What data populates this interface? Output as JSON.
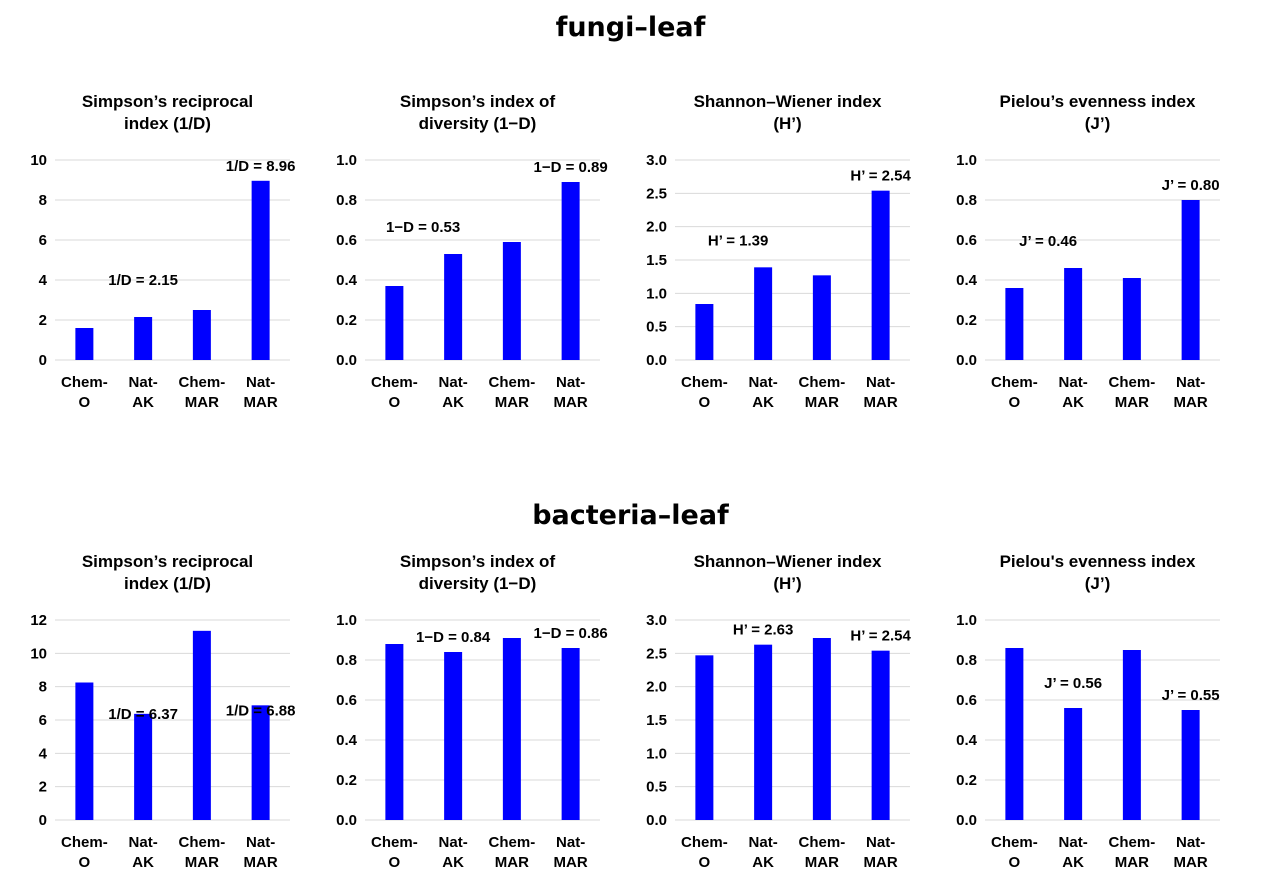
{
  "sections": [
    {
      "title": "fungi–leaf"
    },
    {
      "title": "bacteria–leaf"
    }
  ],
  "chart_data": [
    {
      "type": "bar",
      "title": "Simpson’s reciprocal index (1/D)",
      "title_lines": [
        "Simpson’s reciprocal",
        "index (1/D)"
      ],
      "categories": [
        "Chem-O",
        "Nat-AK",
        "Chem-MAR",
        "Nat-MAR"
      ],
      "category_lines": [
        [
          "Chem-",
          "O"
        ],
        [
          "Nat-",
          "AK"
        ],
        [
          "Chem-",
          "MAR"
        ],
        [
          "Nat-",
          "MAR"
        ]
      ],
      "values": [
        1.6,
        2.15,
        2.5,
        8.96
      ],
      "ylim": [
        0,
        10
      ],
      "yticks": [
        "0",
        "2",
        "4",
        "6",
        "8",
        "10"
      ],
      "data_labels": [
        "",
        "1/D = 2.15",
        "",
        "1/D = 8.96"
      ],
      "color": "#0000ff",
      "grid": true
    },
    {
      "type": "bar",
      "title": "Simpson’s index of diversity (1−D)",
      "title_lines": [
        "Simpson’s index of",
        "diversity (1−D)"
      ],
      "categories": [
        "Chem-O",
        "Nat-AK",
        "Chem-MAR",
        "Nat-MAR"
      ],
      "category_lines": [
        [
          "Chem-",
          "O"
        ],
        [
          "Nat-",
          "AK"
        ],
        [
          "Chem-",
          "MAR"
        ],
        [
          "Nat-",
          "MAR"
        ]
      ],
      "values": [
        0.37,
        0.53,
        0.59,
        0.89
      ],
      "ylim": [
        0,
        1
      ],
      "yticks": [
        "0.0",
        "0.2",
        "0.4",
        "0.6",
        "0.8",
        "1.0"
      ],
      "data_labels": [
        "",
        "1−D = 0.53",
        "",
        "1−D = 0.89"
      ],
      "color": "#0000ff",
      "grid": true
    },
    {
      "type": "bar",
      "title": "Shannon–Wiener index (H’)",
      "title_lines": [
        "Shannon–Wiener index",
        "(H’)"
      ],
      "categories": [
        "Chem-O",
        "Nat-AK",
        "Chem-MAR",
        "Nat-MAR"
      ],
      "category_lines": [
        [
          "Chem-",
          "O"
        ],
        [
          "Nat-",
          "AK"
        ],
        [
          "Chem-",
          "MAR"
        ],
        [
          "Nat-",
          "MAR"
        ]
      ],
      "values": [
        0.84,
        1.39,
        1.27,
        2.54
      ],
      "ylim": [
        0,
        3
      ],
      "yticks": [
        "0.0",
        "0.5",
        "1.0",
        "1.5",
        "2.0",
        "2.5",
        "3.0"
      ],
      "data_labels": [
        "",
        "H’ = 1.39",
        "",
        "H’ = 2.54"
      ],
      "color": "#0000ff",
      "grid": true
    },
    {
      "type": "bar",
      "title": "Pielou’s evenness index (J’)",
      "title_lines": [
        "Pielou’s evenness index",
        "(J’)"
      ],
      "categories": [
        "Chem-O",
        "Nat-AK",
        "Chem-MAR",
        "Nat-MAR"
      ],
      "category_lines": [
        [
          "Chem-",
          "O"
        ],
        [
          "Nat-",
          "AK"
        ],
        [
          "Chem-",
          "MAR"
        ],
        [
          "Nat-",
          "MAR"
        ]
      ],
      "values": [
        0.36,
        0.46,
        0.41,
        0.8
      ],
      "ylim": [
        0,
        1
      ],
      "yticks": [
        "0.0",
        "0.2",
        "0.4",
        "0.6",
        "0.8",
        "1.0"
      ],
      "data_labels": [
        "",
        "J’ = 0.46",
        "",
        "J’ = 0.80"
      ],
      "color": "#0000ff",
      "grid": true
    },
    {
      "type": "bar",
      "title": "Simpson’s reciprocal index (1/D)",
      "title_lines": [
        "Simpson’s reciprocal",
        "index (1/D)"
      ],
      "categories": [
        "Chem-O",
        "Nat-AK",
        "Chem-MAR",
        "Nat-MAR"
      ],
      "category_lines": [
        [
          "Chem-",
          "O"
        ],
        [
          "Nat-",
          "AK"
        ],
        [
          "Chem-",
          "MAR"
        ],
        [
          "Nat-",
          "MAR"
        ]
      ],
      "values": [
        8.25,
        6.37,
        11.35,
        6.88
      ],
      "ylim": [
        0,
        12
      ],
      "yticks": [
        "0",
        "2",
        "4",
        "6",
        "8",
        "10",
        "12"
      ],
      "data_labels": [
        "",
        "1/D = 6.37",
        "",
        "1/D = 6.88"
      ],
      "color": "#0000ff",
      "grid": true
    },
    {
      "type": "bar",
      "title": "Simpson’s index of diversity (1−D)",
      "title_lines": [
        "Simpson’s index of",
        "diversity (1−D)"
      ],
      "categories": [
        "Chem-O",
        "Nat-AK",
        "Chem-MAR",
        "Nat-MAR"
      ],
      "category_lines": [
        [
          "Chem-",
          "O"
        ],
        [
          "Nat-",
          "AK"
        ],
        [
          "Chem-",
          "MAR"
        ],
        [
          "Nat-",
          "MAR"
        ]
      ],
      "values": [
        0.88,
        0.84,
        0.91,
        0.86
      ],
      "ylim": [
        0,
        1
      ],
      "yticks": [
        "0.0",
        "0.2",
        "0.4",
        "0.6",
        "0.8",
        "1.0"
      ],
      "data_labels": [
        "",
        "1−D = 0.84",
        "",
        "1−D = 0.86"
      ],
      "color": "#0000ff",
      "grid": true
    },
    {
      "type": "bar",
      "title": "Shannon–Wiener index (H’)",
      "title_lines": [
        "Shannon–Wiener index",
        "(H’)"
      ],
      "categories": [
        "Chem-O",
        "Nat-AK",
        "Chem-MAR",
        "Nat-MAR"
      ],
      "category_lines": [
        [
          "Chem-",
          "O"
        ],
        [
          "Nat-",
          "AK"
        ],
        [
          "Chem-",
          "MAR"
        ],
        [
          "Nat-",
          "MAR"
        ]
      ],
      "values": [
        2.47,
        2.63,
        2.73,
        2.54
      ],
      "ylim": [
        0,
        3
      ],
      "yticks": [
        "0.0",
        "0.5",
        "1.0",
        "1.5",
        "2.0",
        "2.5",
        "3.0"
      ],
      "data_labels": [
        "",
        "H’ = 2.63",
        "",
        "H’ = 2.54"
      ],
      "color": "#0000ff",
      "grid": true
    },
    {
      "type": "bar",
      "title": "Pielou's evenness index (J’)",
      "title_lines": [
        "Pielou's evenness index",
        "(J’)"
      ],
      "categories": [
        "Chem-O",
        "Nat-AK",
        "Chem-MAR",
        "Nat-MAR"
      ],
      "category_lines": [
        [
          "Chem-",
          "O"
        ],
        [
          "Nat-",
          "AK"
        ],
        [
          "Chem-",
          "MAR"
        ],
        [
          "Nat-",
          "MAR"
        ]
      ],
      "values": [
        0.86,
        0.56,
        0.85,
        0.55
      ],
      "ylim": [
        0,
        1
      ],
      "yticks": [
        "0.0",
        "0.2",
        "0.4",
        "0.6",
        "0.8",
        "1.0"
      ],
      "data_labels": [
        "",
        "J’ = 0.56",
        "",
        "J’ = 0.55"
      ],
      "color": "#0000ff",
      "grid": true
    }
  ]
}
